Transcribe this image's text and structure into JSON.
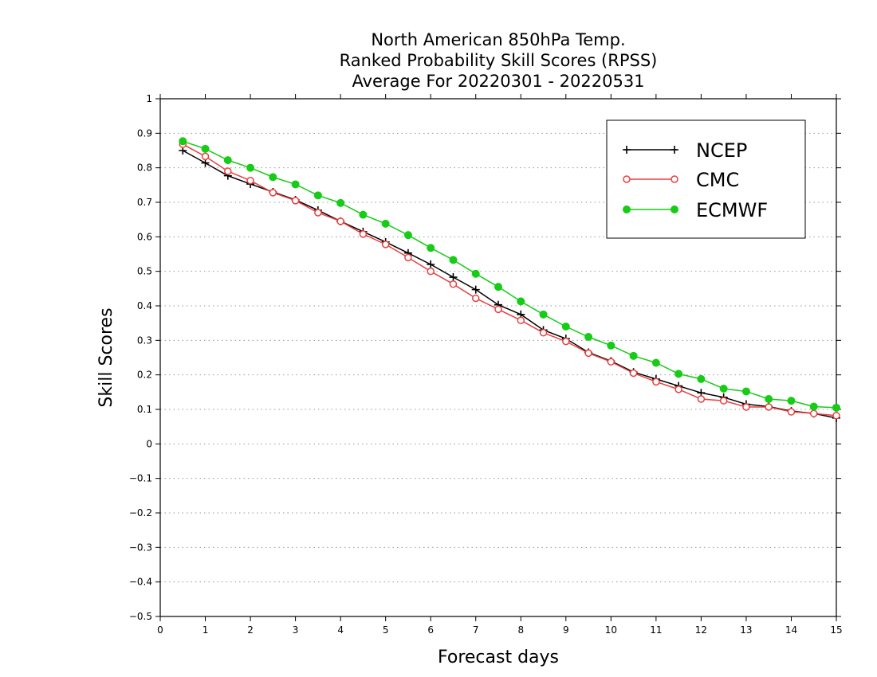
{
  "chart_data": {
    "type": "line",
    "title": [
      "North American 850hPa Temp.",
      "Ranked Probability Skill Scores (RPSS)",
      "Average For 20220301 - 20220531"
    ],
    "xlabel": "Forecast days",
    "ylabel": "Skill Scores",
    "xlim": [
      0,
      15
    ],
    "ylim": [
      -0.5,
      1
    ],
    "xticks": [
      0,
      1,
      2,
      3,
      4,
      5,
      6,
      7,
      8,
      9,
      10,
      11,
      12,
      13,
      14,
      15
    ],
    "yticks": [
      -0.5,
      -0.4,
      -0.3,
      -0.2,
      -0.1,
      0,
      0.1,
      0.2,
      0.3,
      0.4,
      0.5,
      0.6,
      0.7,
      0.8,
      0.9,
      1
    ],
    "xtick_labels": [
      "0",
      "1",
      "2",
      "3",
      "4",
      "5",
      "6",
      "7",
      "8",
      "9",
      "10",
      "11",
      "12",
      "13",
      "14",
      "15"
    ],
    "ytick_labels": [
      "−0.5",
      "−0.4",
      "−0.3",
      "−0.2",
      "−0.1",
      "0",
      "0.1",
      "0.2",
      "0.3",
      "0.4",
      "0.5",
      "0.6",
      "0.7",
      "0.8",
      "0.9",
      "1"
    ],
    "grid": "horizontal dotted",
    "legend_position": "top-right",
    "x": [
      0.5,
      1,
      1.5,
      2,
      2.5,
      3,
      3.5,
      4,
      4.5,
      5,
      5.5,
      6,
      6.5,
      7,
      7.5,
      8,
      8.5,
      9,
      9.5,
      10,
      10.5,
      11,
      11.5,
      12,
      12.5,
      13,
      13.5,
      14,
      14.5,
      15
    ],
    "series": [
      {
        "name": "NCEP",
        "color": "#000000",
        "marker": "plus",
        "values": [
          0.85,
          0.814,
          0.777,
          0.753,
          0.73,
          0.707,
          0.677,
          0.645,
          0.615,
          0.585,
          0.553,
          0.52,
          0.483,
          0.447,
          0.403,
          0.375,
          0.33,
          0.305,
          0.265,
          0.24,
          0.208,
          0.188,
          0.168,
          0.148,
          0.135,
          0.115,
          0.108,
          0.095,
          0.088,
          0.075
        ]
      },
      {
        "name": "CMC",
        "color": "#e84040",
        "marker": "open-circle",
        "values": [
          0.868,
          0.833,
          0.79,
          0.763,
          0.728,
          0.705,
          0.67,
          0.645,
          0.608,
          0.578,
          0.54,
          0.5,
          0.463,
          0.422,
          0.39,
          0.358,
          0.322,
          0.297,
          0.263,
          0.238,
          0.205,
          0.18,
          0.158,
          0.13,
          0.125,
          0.107,
          0.107,
          0.093,
          0.088,
          0.082
        ]
      },
      {
        "name": "ECMWF",
        "color": "#16cc16",
        "marker": "filled-circle",
        "values": [
          0.877,
          0.855,
          0.822,
          0.8,
          0.773,
          0.752,
          0.72,
          0.698,
          0.664,
          0.638,
          0.605,
          0.568,
          0.533,
          0.493,
          0.455,
          0.413,
          0.375,
          0.34,
          0.31,
          0.285,
          0.255,
          0.235,
          0.203,
          0.188,
          0.16,
          0.152,
          0.13,
          0.125,
          0.108,
          0.105
        ]
      }
    ]
  }
}
